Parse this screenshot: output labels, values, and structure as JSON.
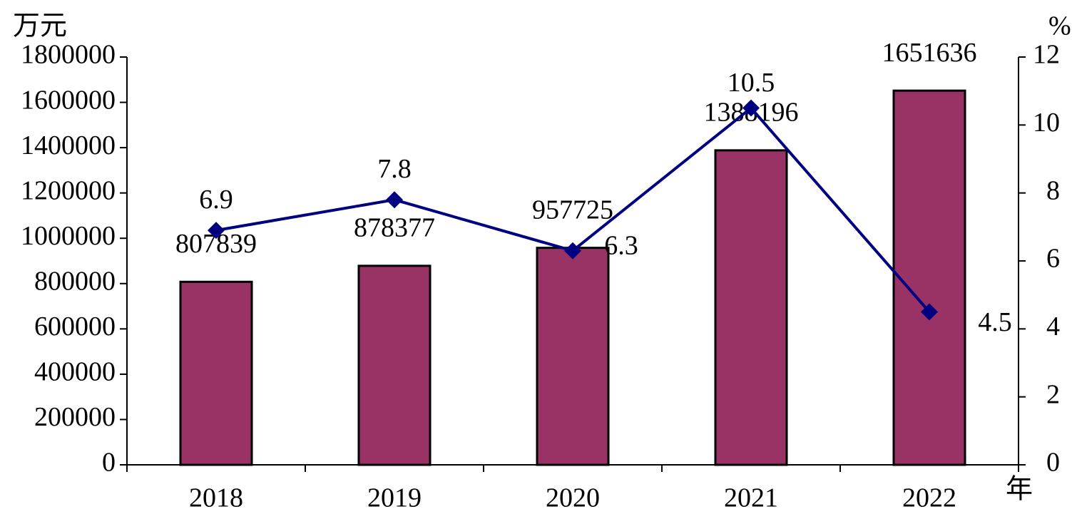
{
  "chart_data": {
    "type": "bar",
    "y_label": "万元",
    "y2_label": "%",
    "x_label": "年",
    "categories": [
      "2018",
      "2019",
      "2020",
      "2021",
      "2022"
    ],
    "series": [
      {
        "type": "bar",
        "color": "#993366",
        "values": [
          807839,
          878377,
          957725,
          1388196,
          1651636
        ]
      },
      {
        "type": "line",
        "axis": "y2",
        "color": "#000080",
        "values": [
          6.9,
          7.8,
          6.3,
          10.5,
          4.5
        ]
      }
    ],
    "ylim": [
      0,
      1800000
    ],
    "yticks": [
      0,
      200000,
      400000,
      600000,
      800000,
      1000000,
      1200000,
      1400000,
      1600000,
      1800000
    ],
    "y2lim": [
      0,
      12
    ],
    "y2ticks": [
      0,
      2,
      4,
      6,
      8,
      10,
      12
    ]
  }
}
